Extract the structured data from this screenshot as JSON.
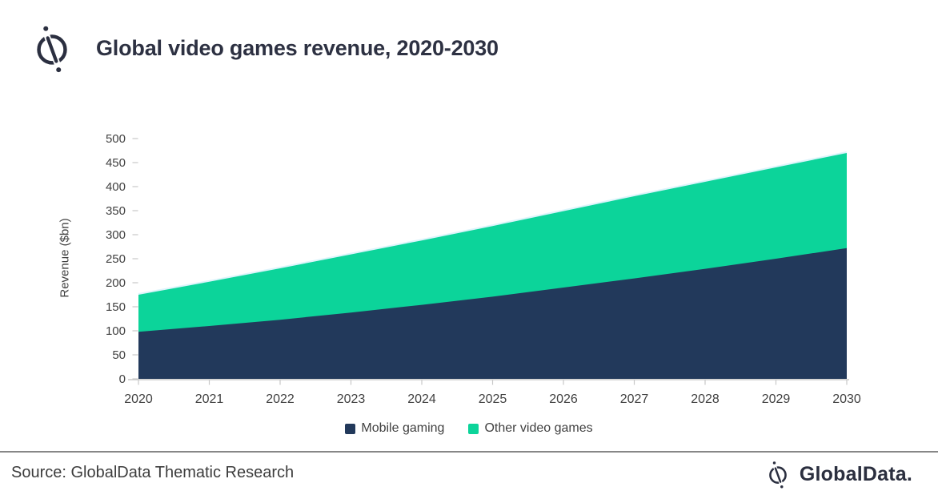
{
  "header": {
    "title": "Global video games revenue, 2020-2030"
  },
  "chart_data": {
    "type": "area",
    "stacked": true,
    "title": "Global video games revenue, 2020-2030",
    "x": [
      2020,
      2021,
      2022,
      2023,
      2024,
      2025,
      2026,
      2027,
      2028,
      2029,
      2030
    ],
    "series": [
      {
        "name": "Mobile gaming",
        "color": "#22395b",
        "values": [
          98,
          110,
          123,
          138,
          154,
          171,
          190,
          209,
          229,
          250,
          272
        ]
      },
      {
        "name": "Other video games",
        "color": "#0cd49a",
        "values": [
          77,
          92,
          107,
          121,
          134,
          147,
          159,
          171,
          181,
          190,
          198
        ]
      }
    ],
    "totals": [
      175,
      202,
      230,
      259,
      288,
      318,
      349,
      380,
      410,
      440,
      470
    ],
    "ylabel": "Revenue ($bn)",
    "ylim": [
      0,
      500
    ],
    "ytick_step": 50,
    "yticks": [
      0,
      50,
      100,
      150,
      200,
      250,
      300,
      350,
      400,
      450,
      500
    ],
    "grid": false,
    "legend_position": "bottom",
    "axis_color": "#c8c8c8",
    "tick_text_color": "#414141"
  },
  "footer": {
    "source": "Source: GlobalData Thematic Research",
    "brand": "GlobalData."
  }
}
